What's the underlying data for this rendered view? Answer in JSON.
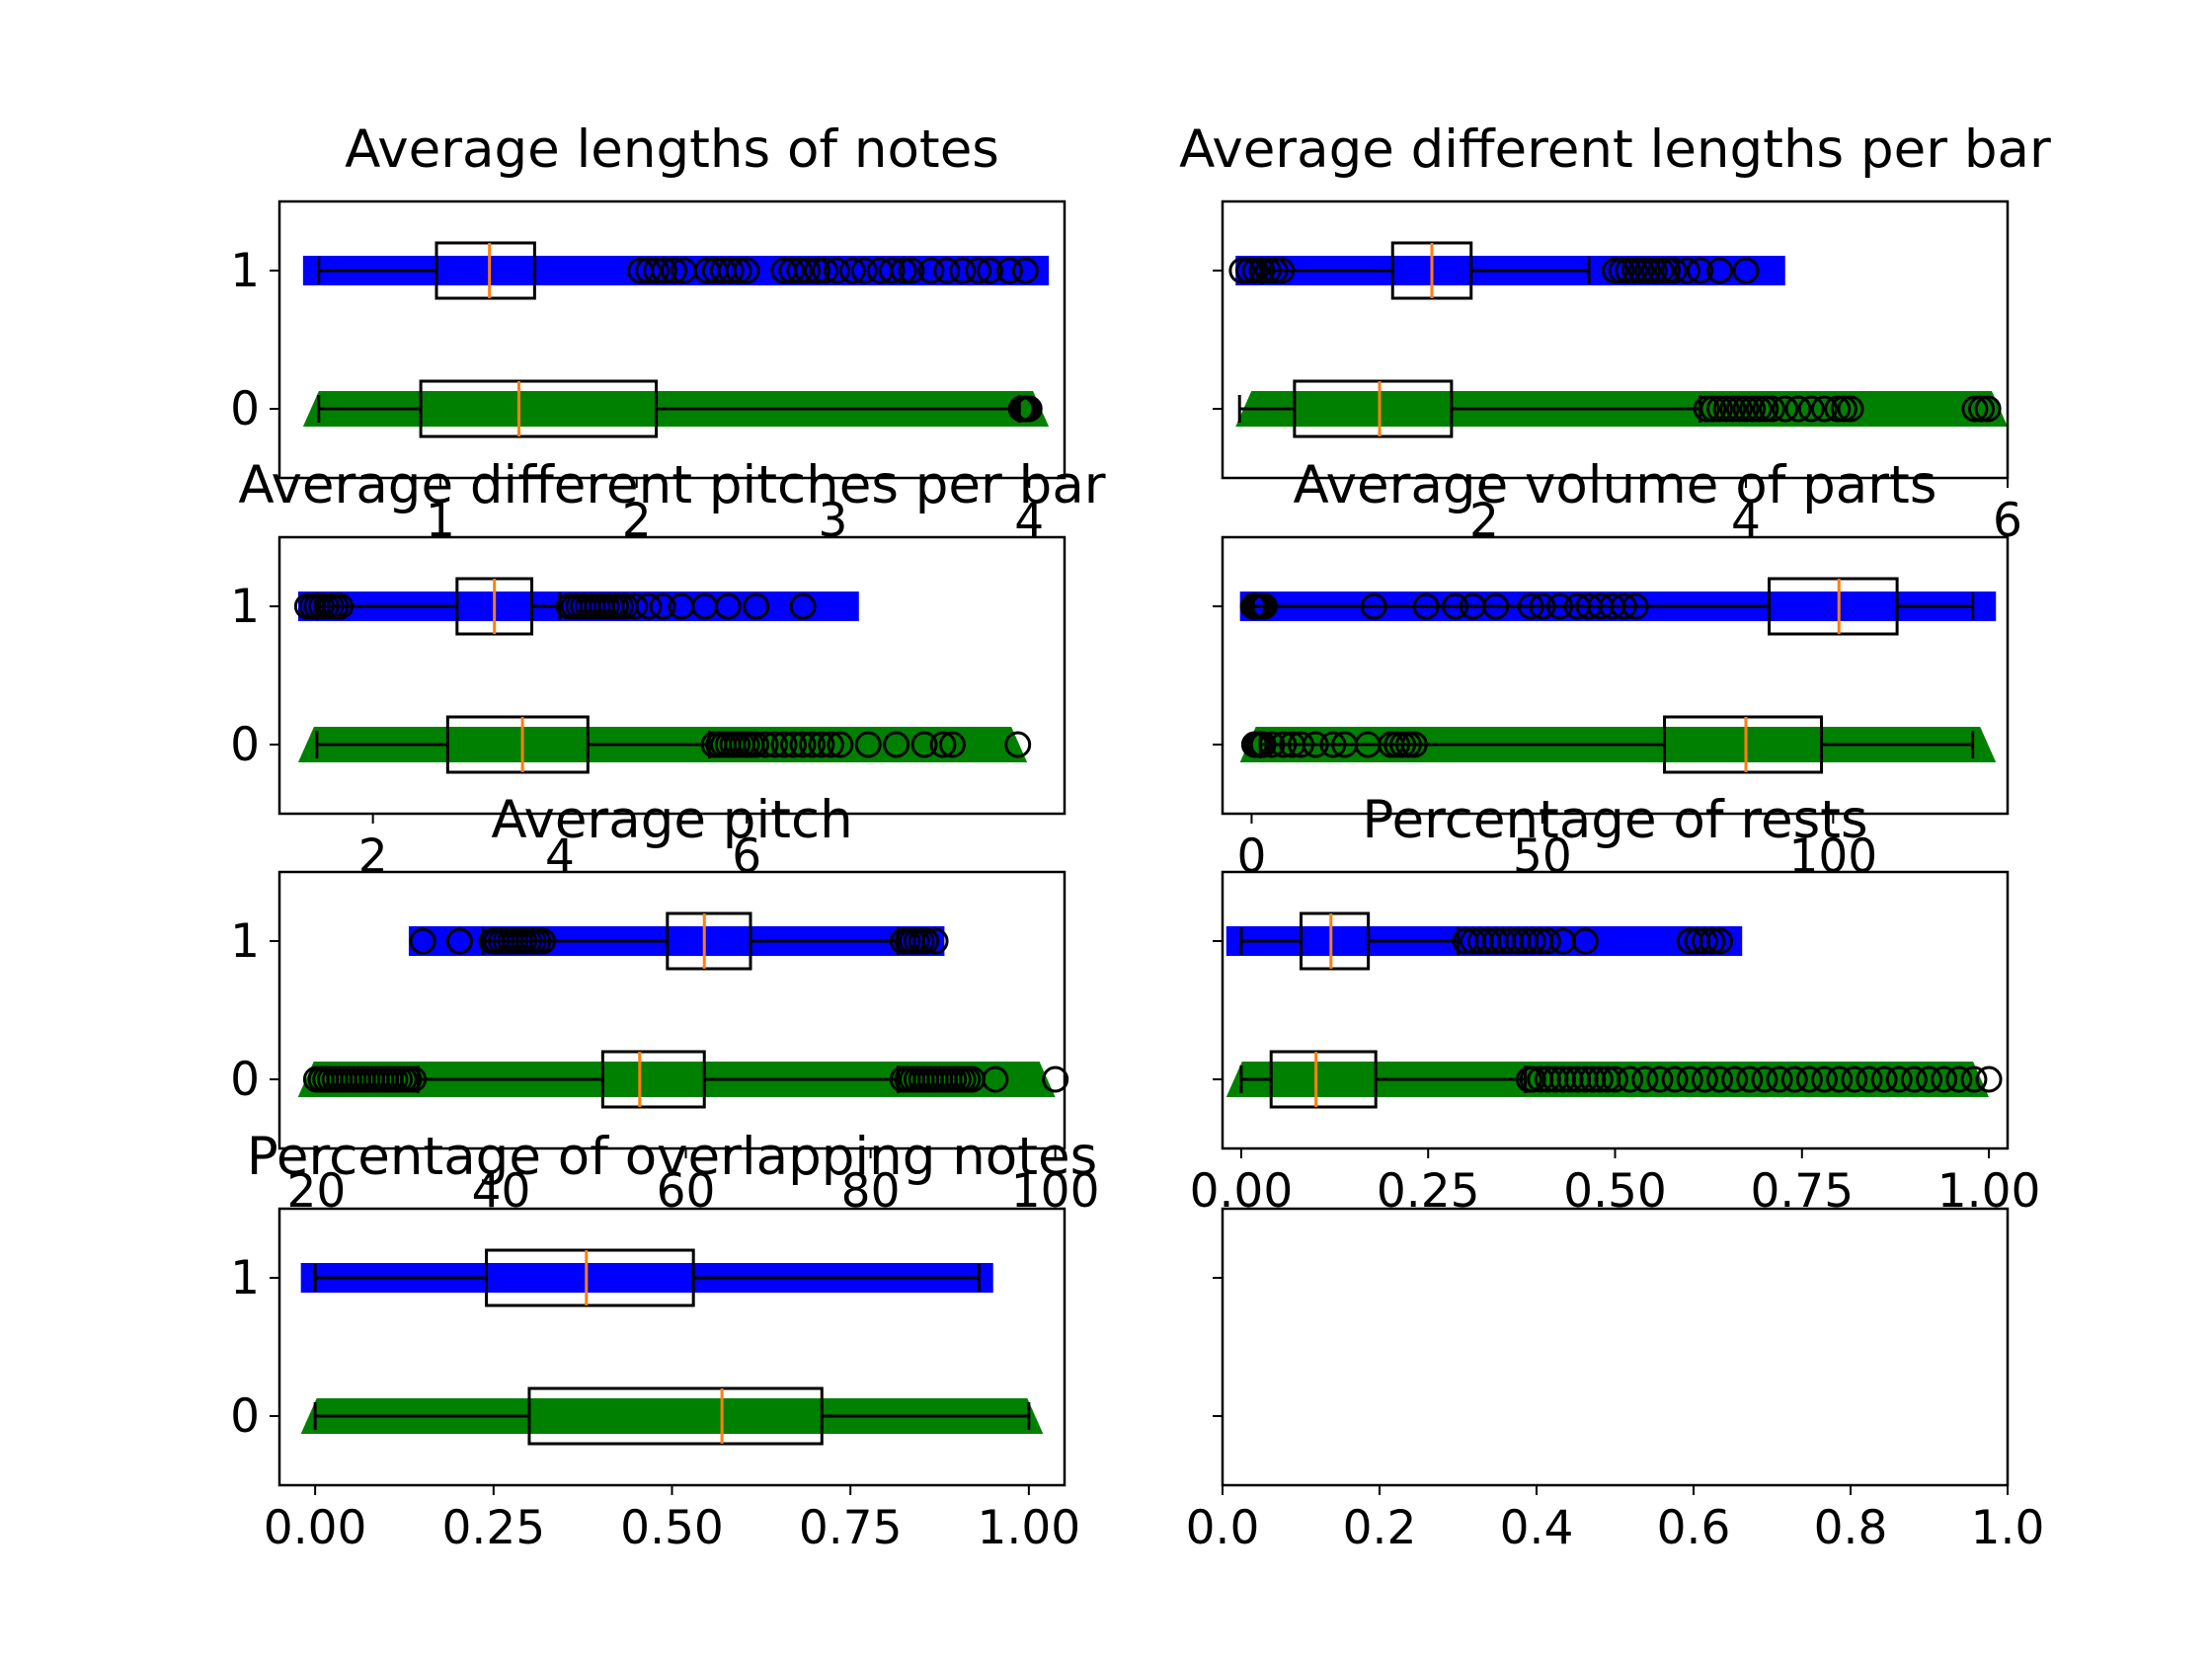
{
  "colors": {
    "series_1": "#0000ff",
    "series_0": "#008000",
    "median": "#ff7f0e",
    "box_edge": "#000000",
    "flier_edge": "#000000"
  },
  "chart_data": [
    {
      "type": "boxplot",
      "title": "Average lengths of notes",
      "xlim": [
        0.18,
        4.18
      ],
      "xticks": [
        "1",
        "2",
        "3",
        "4"
      ],
      "xtick_values": [
        1,
        2,
        3,
        4
      ],
      "yticks": [
        "0",
        "1"
      ],
      "show_yticklabels": true,
      "series": [
        {
          "category": "1",
          "color": "#0000ff",
          "marker": "square",
          "range": [
            0.3,
            4.1
          ],
          "whislo": 0.38,
          "q1": 0.98,
          "median": 1.25,
          "q3": 1.48,
          "whishi": 1.48,
          "fliers": [
            2.02,
            2.06,
            2.1,
            2.14,
            2.19,
            2.24,
            2.36,
            2.4,
            2.44,
            2.48,
            2.52,
            2.56,
            2.75,
            2.79,
            2.83,
            2.87,
            2.92,
            2.96,
            3.02,
            3.1,
            3.16,
            3.24,
            3.3,
            3.36,
            3.4,
            3.5,
            3.58,
            3.66,
            3.74,
            3.8,
            3.9,
            3.98
          ]
        },
        {
          "category": "0",
          "color": "#008000",
          "marker": "triangle",
          "range": [
            0.3,
            4.1
          ],
          "whislo": 0.38,
          "q1": 0.9,
          "median": 1.4,
          "q3": 2.1,
          "whishi": 3.95,
          "fliers": [
            3.96,
            3.97,
            3.98,
            3.99,
            4.0
          ]
        }
      ]
    },
    {
      "type": "boxplot",
      "title": "Average different lengths per bar",
      "xlim": [
        0.0,
        6.0
      ],
      "xticks": [
        "2",
        "4",
        "6"
      ],
      "xtick_values": [
        2,
        4,
        6
      ],
      "yticks": [
        "0",
        "1"
      ],
      "show_yticklabels": false,
      "series": [
        {
          "category": "1",
          "color": "#0000ff",
          "marker": "square",
          "range": [
            0.1,
            4.3
          ],
          "whislo": 0.3,
          "q1": 1.3,
          "median": 1.6,
          "q3": 1.9,
          "whishi": 2.8,
          "fliers": [
            0.15,
            0.2,
            0.25,
            0.3,
            0.35,
            0.4,
            0.45,
            3.0,
            3.05,
            3.1,
            3.15,
            3.2,
            3.25,
            3.3,
            3.35,
            3.4,
            3.45,
            3.55,
            3.65,
            3.8,
            4.0
          ]
        },
        {
          "category": "0",
          "color": "#008000",
          "marker": "triangle",
          "range": [
            0.1,
            6.0
          ],
          "whislo": 0.13,
          "q1": 0.55,
          "median": 1.2,
          "q3": 1.75,
          "whishi": 3.65,
          "fliers": [
            3.7,
            3.75,
            3.8,
            3.85,
            3.9,
            3.95,
            4.0,
            4.05,
            4.1,
            4.15,
            4.2,
            4.3,
            4.4,
            4.5,
            4.6,
            4.7,
            4.75,
            4.8,
            5.75,
            5.8,
            5.85
          ]
        }
      ]
    },
    {
      "type": "boxplot",
      "title": "Average different pitches per bar",
      "xlim": [
        1.0,
        9.4
      ],
      "xticks": [
        "2",
        "4",
        "6"
      ],
      "xtick_values": [
        2,
        4,
        6
      ],
      "yticks": [
        "0",
        "1"
      ],
      "show_yticklabels": true,
      "series": [
        {
          "category": "1",
          "color": "#0000ff",
          "marker": "square",
          "range": [
            1.2,
            7.2
          ],
          "whislo": 1.4,
          "q1": 2.9,
          "median": 3.3,
          "q3": 3.7,
          "whishi": 4.0,
          "fliers": [
            1.3,
            1.35,
            1.4,
            1.45,
            1.5,
            1.55,
            1.6,
            1.65,
            4.1,
            4.15,
            4.2,
            4.25,
            4.3,
            4.35,
            4.4,
            4.45,
            4.5,
            4.55,
            4.6,
            4.65,
            4.7,
            4.8,
            4.95,
            5.1,
            5.3,
            5.55,
            5.8,
            6.1,
            6.6
          ]
        },
        {
          "category": "0",
          "color": "#008000",
          "marker": "triangle",
          "range": [
            1.2,
            9.0
          ],
          "whislo": 1.4,
          "q1": 2.8,
          "median": 3.6,
          "q3": 4.3,
          "whishi": 5.6,
          "fliers": [
            5.65,
            5.7,
            5.75,
            5.8,
            5.85,
            5.9,
            5.95,
            6.0,
            6.05,
            6.1,
            6.2,
            6.3,
            6.4,
            6.5,
            6.6,
            6.7,
            6.8,
            6.9,
            7.0,
            7.3,
            7.6,
            7.9,
            8.1,
            8.2,
            8.9
          ]
        }
      ]
    },
    {
      "type": "boxplot",
      "title": "Average volume of parts",
      "xlim": [
        -5,
        130
      ],
      "xticks": [
        "0",
        "50",
        "100"
      ],
      "xtick_values": [
        0,
        50,
        100
      ],
      "yticks": [
        "0",
        "1"
      ],
      "show_yticklabels": false,
      "series": [
        {
          "category": "1",
          "color": "#0000ff",
          "marker": "square",
          "range": [
            -2,
            128
          ],
          "whislo": 0.3,
          "q1": 89,
          "median": 101,
          "q3": 111,
          "whishi": 124,
          "fliers": [
            0.3,
            0.6,
            1.0,
            1.4,
            1.8,
            2.2,
            21,
            30,
            35,
            38,
            42,
            48,
            50,
            53,
            56,
            58,
            60,
            62,
            64,
            66
          ]
        },
        {
          "category": "0",
          "color": "#008000",
          "marker": "triangle",
          "range": [
            -2,
            128
          ],
          "whislo": 1.5,
          "q1": 71,
          "median": 85,
          "q3": 98,
          "whishi": 124,
          "fliers": [
            0.5,
            1.0,
            1.5,
            2.0,
            3.5,
            5.5,
            7.0,
            8.5,
            11,
            14,
            16,
            20,
            24,
            25,
            26,
            27,
            28
          ]
        }
      ]
    },
    {
      "type": "boxplot",
      "title": "Average pitch",
      "xlim": [
        16,
        101
      ],
      "xticks": [
        "20",
        "40",
        "60",
        "80",
        "100"
      ],
      "xtick_values": [
        20,
        40,
        60,
        80,
        100
      ],
      "yticks": [
        "0",
        "1"
      ],
      "show_yticklabels": true,
      "series": [
        {
          "category": "1",
          "color": "#0000ff",
          "marker": "square",
          "range": [
            30,
            88
          ],
          "whislo": 38,
          "q1": 58,
          "median": 62,
          "q3": 67,
          "whishi": 83,
          "fliers": [
            31.5,
            35.5,
            39,
            39.5,
            40,
            40.5,
            41,
            41.5,
            42,
            42.5,
            43,
            43.5,
            44,
            44.5,
            83.5,
            84,
            84.5,
            85,
            85.5,
            86,
            87
          ]
        },
        {
          "category": "0",
          "color": "#008000",
          "marker": "triangle",
          "range": [
            18,
            100
          ],
          "whislo": 31,
          "q1": 51,
          "median": 55,
          "q3": 62,
          "whishi": 83,
          "fliers": [
            20,
            20.5,
            21,
            21.5,
            22,
            22.5,
            23,
            23.5,
            24,
            24.5,
            25,
            25.5,
            26,
            26.5,
            27,
            27.5,
            28,
            28.5,
            29,
            29.5,
            30,
            30.5,
            83.5,
            84,
            84.5,
            85,
            85.5,
            86,
            86.5,
            87,
            87.5,
            88,
            88.5,
            89,
            89.5,
            90,
            90.5,
            91,
            93.5,
            100
          ]
        }
      ]
    },
    {
      "type": "boxplot",
      "title": "Percentage of rests",
      "xlim": [
        -0.025,
        1.025
      ],
      "xticks": [
        "0.00",
        "0.25",
        "0.50",
        "0.75",
        "1.00"
      ],
      "xtick_values": [
        0,
        0.25,
        0.5,
        0.75,
        1.0
      ],
      "yticks": [
        "0",
        "1"
      ],
      "show_yticklabels": false,
      "series": [
        {
          "category": "1",
          "color": "#0000ff",
          "marker": "square",
          "range": [
            -0.02,
            0.67
          ],
          "whislo": 0.0,
          "q1": 0.08,
          "median": 0.12,
          "q3": 0.17,
          "whishi": 0.29,
          "fliers": [
            0.3,
            0.31,
            0.32,
            0.33,
            0.34,
            0.35,
            0.36,
            0.37,
            0.38,
            0.39,
            0.4,
            0.41,
            0.43,
            0.46,
            0.6,
            0.61,
            0.62,
            0.63,
            0.64
          ]
        },
        {
          "category": "0",
          "color": "#008000",
          "marker": "triangle",
          "range": [
            -0.02,
            1.0
          ],
          "whislo": 0.0,
          "q1": 0.04,
          "median": 0.1,
          "q3": 0.18,
          "whishi": 0.38,
          "fliers": [
            0.385,
            0.39,
            0.4,
            0.41,
            0.42,
            0.43,
            0.44,
            0.45,
            0.46,
            0.47,
            0.48,
            0.49,
            0.5,
            0.52,
            0.54,
            0.56,
            0.58,
            0.6,
            0.62,
            0.64,
            0.66,
            0.68,
            0.7,
            0.72,
            0.74,
            0.76,
            0.78,
            0.8,
            0.82,
            0.84,
            0.86,
            0.88,
            0.9,
            0.92,
            0.94,
            0.96,
            0.98,
            1.0
          ]
        }
      ]
    },
    {
      "type": "boxplot",
      "title": "Percentage of overlapping notes",
      "xlim": [
        -0.05,
        1.05
      ],
      "xticks": [
        "0.00",
        "0.25",
        "0.50",
        "0.75",
        "1.00"
      ],
      "xtick_values": [
        0,
        0.25,
        0.5,
        0.75,
        1.0
      ],
      "yticks": [
        "0",
        "1"
      ],
      "show_yticklabels": true,
      "series": [
        {
          "category": "1",
          "color": "#0000ff",
          "marker": "square",
          "range": [
            -0.02,
            0.95
          ],
          "whislo": 0.0,
          "q1": 0.24,
          "median": 0.38,
          "q3": 0.53,
          "whishi": 0.93,
          "fliers": []
        },
        {
          "category": "0",
          "color": "#008000",
          "marker": "triangle",
          "range": [
            -0.02,
            1.02
          ],
          "whislo": 0.0,
          "q1": 0.3,
          "median": 0.57,
          "q3": 0.71,
          "whishi": 1.0,
          "fliers": []
        }
      ]
    },
    {
      "type": "empty",
      "title": "",
      "xlim": [
        0.0,
        1.0
      ],
      "xticks": [
        "0.0",
        "0.2",
        "0.4",
        "0.6",
        "0.8",
        "1.0"
      ],
      "xtick_values": [
        0.0,
        0.2,
        0.4,
        0.6,
        0.8,
        1.0
      ],
      "yticks": [
        "0",
        "1"
      ],
      "show_yticklabels": false,
      "series": []
    }
  ]
}
